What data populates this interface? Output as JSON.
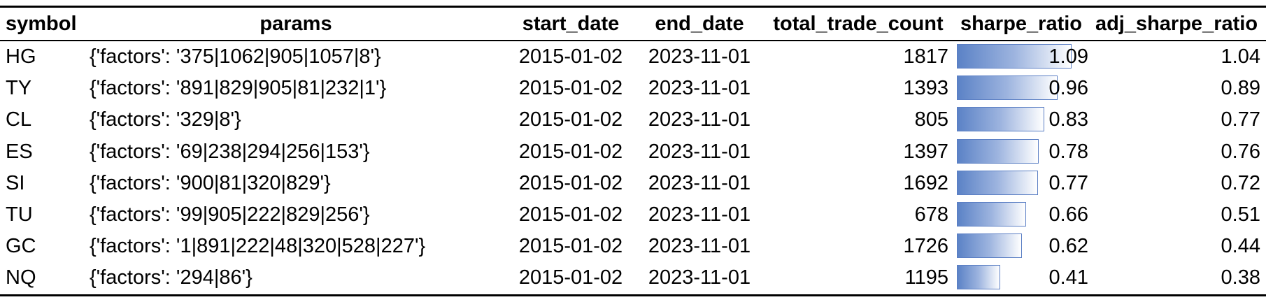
{
  "table": {
    "headers": {
      "symbol": "symbol",
      "params": "params",
      "start_date": "start_date",
      "end_date": "end_date",
      "total_trade_count": "total_trade_count",
      "sharpe_ratio": "sharpe_ratio",
      "adj_sharpe_ratio": "adj_sharpe_ratio"
    },
    "databar_max": 1.09,
    "databar_color": "#5b82c6",
    "rows": [
      {
        "symbol": "HG",
        "params": "{'factors': '375|1062|905|1057|8'}",
        "start_date": "2015-01-02",
        "end_date": "2023-11-01",
        "total_trade_count": "1817",
        "sharpe_ratio": "1.09",
        "sharpe_value": 1.09,
        "adj_sharpe_ratio": "1.04"
      },
      {
        "symbol": "TY",
        "params": "{'factors': '891|829|905|81|232|1'}",
        "start_date": "2015-01-02",
        "end_date": "2023-11-01",
        "total_trade_count": "1393",
        "sharpe_ratio": "0.96",
        "sharpe_value": 0.96,
        "adj_sharpe_ratio": "0.89"
      },
      {
        "symbol": "CL",
        "params": "{'factors': '329|8'}",
        "start_date": "2015-01-02",
        "end_date": "2023-11-01",
        "total_trade_count": "805",
        "sharpe_ratio": "0.83",
        "sharpe_value": 0.83,
        "adj_sharpe_ratio": "0.77"
      },
      {
        "symbol": "ES",
        "params": "{'factors': '69|238|294|256|153'}",
        "start_date": "2015-01-02",
        "end_date": "2023-11-01",
        "total_trade_count": "1397",
        "sharpe_ratio": "0.78",
        "sharpe_value": 0.78,
        "adj_sharpe_ratio": "0.76"
      },
      {
        "symbol": "SI",
        "params": "{'factors': '900|81|320|829'}",
        "start_date": "2015-01-02",
        "end_date": "2023-11-01",
        "total_trade_count": "1692",
        "sharpe_ratio": "0.77",
        "sharpe_value": 0.77,
        "adj_sharpe_ratio": "0.72"
      },
      {
        "symbol": "TU",
        "params": "{'factors': '99|905|222|829|256'}",
        "start_date": "2015-01-02",
        "end_date": "2023-11-01",
        "total_trade_count": "678",
        "sharpe_ratio": "0.66",
        "sharpe_value": 0.66,
        "adj_sharpe_ratio": "0.51"
      },
      {
        "symbol": "GC",
        "params": "{'factors': '1|891|222|48|320|528|227'}",
        "start_date": "2015-01-02",
        "end_date": "2023-11-01",
        "total_trade_count": "1726",
        "sharpe_ratio": "0.62",
        "sharpe_value": 0.62,
        "adj_sharpe_ratio": "0.44"
      },
      {
        "symbol": "NQ",
        "params": "{'factors': '294|86'}",
        "start_date": "2015-01-02",
        "end_date": "2023-11-01",
        "total_trade_count": "1195",
        "sharpe_ratio": "0.41",
        "sharpe_value": 0.41,
        "adj_sharpe_ratio": "0.38"
      }
    ]
  }
}
